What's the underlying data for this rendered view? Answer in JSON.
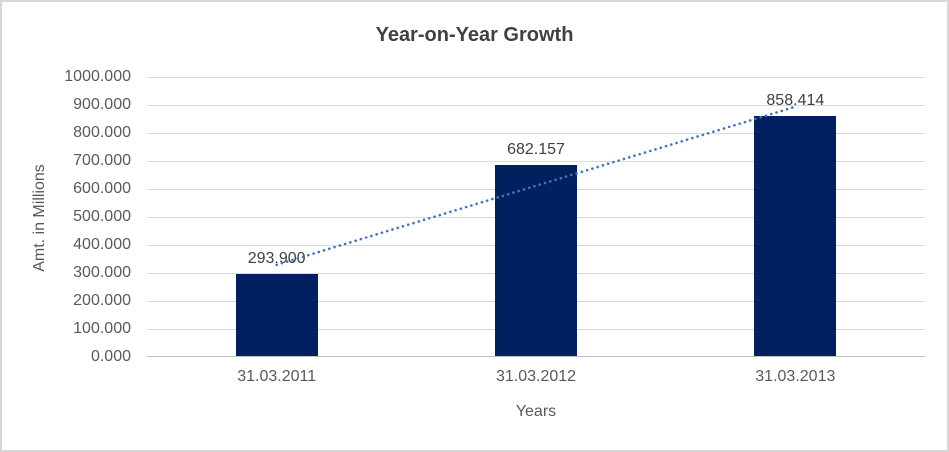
{
  "chart_data": {
    "type": "bar",
    "title": "Year-on-Year Growth",
    "xlabel": "Years",
    "ylabel": "Amt. in Millions",
    "categories": [
      "31.03.2011",
      "31.03.2012",
      "31.03.2013"
    ],
    "values": [
      293.9,
      682.157,
      858.414
    ],
    "value_labels": [
      "293.900",
      "682.157",
      "858.414"
    ],
    "ytick_labels": [
      "0.000",
      "100.000",
      "200.000",
      "300.000",
      "400.000",
      "500.000",
      "600.000",
      "700.000",
      "800.000",
      "900.000",
      "1000.000"
    ],
    "ylim": [
      0,
      1000
    ],
    "grid": true,
    "legend_position": "none",
    "trendline": {
      "type": "linear",
      "style": "dotted",
      "series": "values"
    }
  },
  "colors": {
    "bar_fill": "#002060",
    "trendline": "#4472c4",
    "gridline": "#d9d9d9",
    "axis_line": "#bfbfbf",
    "title_text": "#404040",
    "axis_text": "#595959",
    "data_label_text": "#404040",
    "chart_border": "#d7d7d7",
    "background": "#ffffff"
  }
}
